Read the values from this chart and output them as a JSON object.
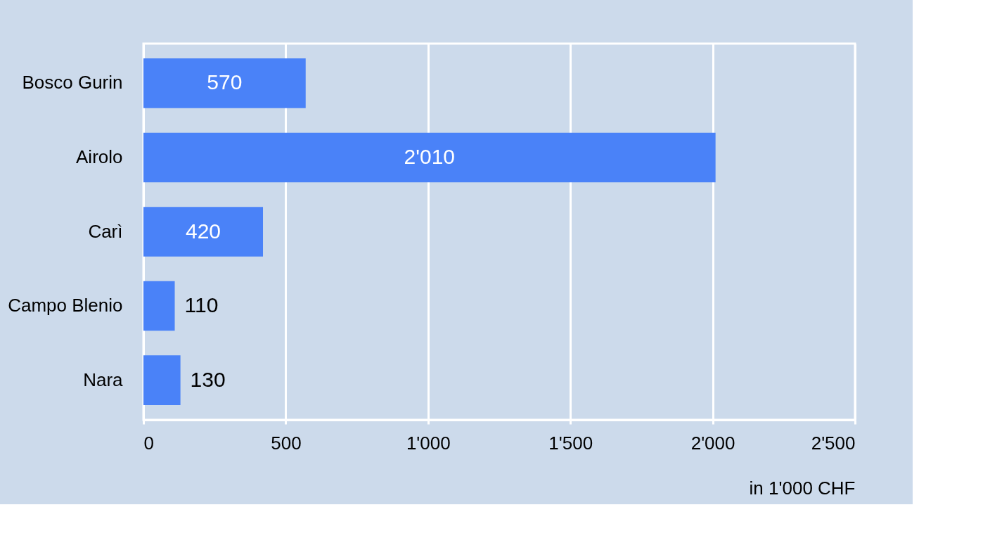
{
  "chart_data": {
    "type": "bar",
    "orientation": "horizontal",
    "categories": [
      "Bosco Gurin",
      "Airolo",
      "Carì",
      "Campo Blenio",
      "Nara"
    ],
    "values": [
      570,
      2010,
      420,
      110,
      130
    ],
    "value_labels": [
      "570",
      "2'010",
      "420",
      "110",
      "130"
    ],
    "color": "#4a82f8",
    "xlim": [
      0,
      2500
    ],
    "xticks": [
      0,
      500,
      {
        "value": 1000,
        "label": "1'000"
      },
      {
        "value": 1500,
        "label": "1'500"
      },
      {
        "value": 2000,
        "label": "2'000"
      },
      {
        "value": 2500,
        "label": "2'500"
      }
    ],
    "xlabel": "in 1'000 CHF",
    "grid": "x"
  }
}
